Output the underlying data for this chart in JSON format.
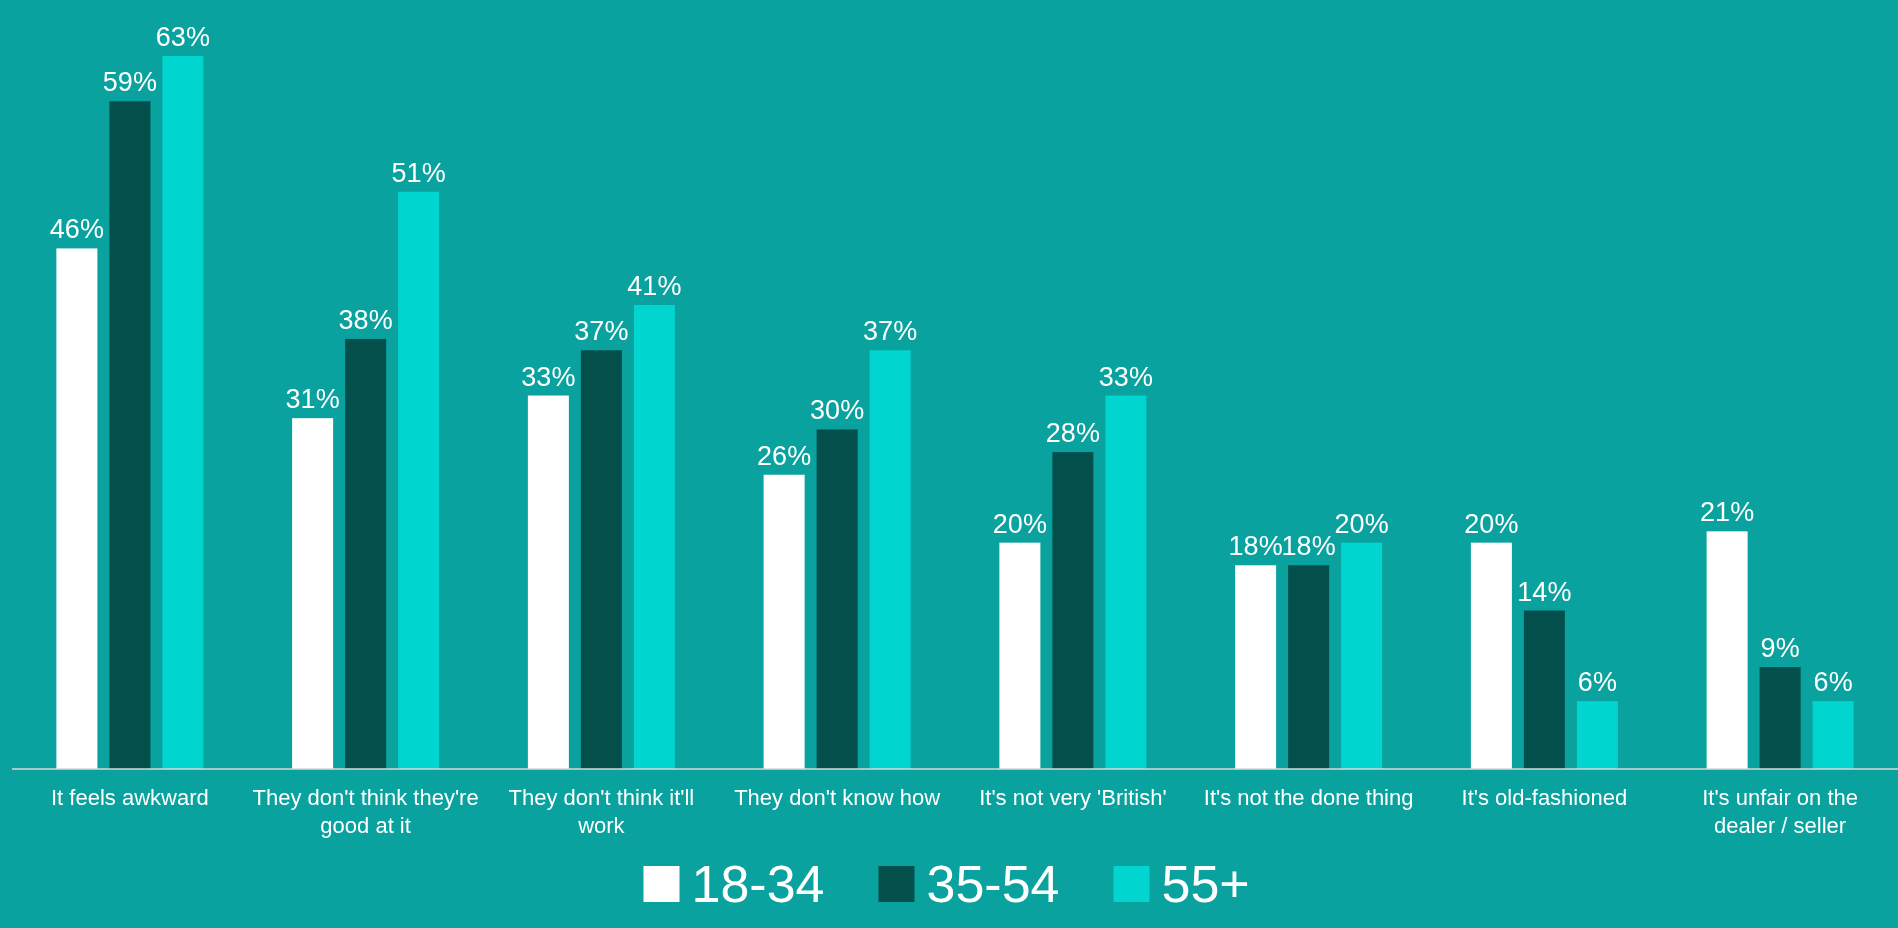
{
  "chart_data": {
    "type": "bar",
    "categories": [
      "It feels awkward",
      "They don't think they're good at it",
      "They don't think it'll work",
      "They don't know how",
      "It's not very 'British'",
      "It's not the done thing",
      "It's old-fashioned",
      "It's unfair on the dealer / seller"
    ],
    "series": [
      {
        "name": "18-34",
        "color": "#ffffff",
        "values": [
          46,
          31,
          33,
          26,
          20,
          18,
          20,
          21
        ],
        "value_labels": [
          "46%",
          "31%",
          "33%",
          "26%",
          "20%",
          "18%",
          "20%",
          "21%"
        ]
      },
      {
        "name": "35-54",
        "color": "#034f4b",
        "values": [
          59,
          38,
          37,
          30,
          28,
          18,
          14,
          9
        ],
        "value_labels": [
          "59%",
          "38%",
          "37%",
          "30%",
          "28%",
          "18%",
          "14%",
          "9%"
        ]
      },
      {
        "name": "55+",
        "color": "#00d5d0",
        "values": [
          63,
          51,
          41,
          37,
          33,
          20,
          6,
          6
        ],
        "value_labels": [
          "63%",
          "51%",
          "41%",
          "37%",
          "33%",
          "20%",
          "6%",
          "6%"
        ]
      }
    ],
    "legend": "bottom"
  }
}
